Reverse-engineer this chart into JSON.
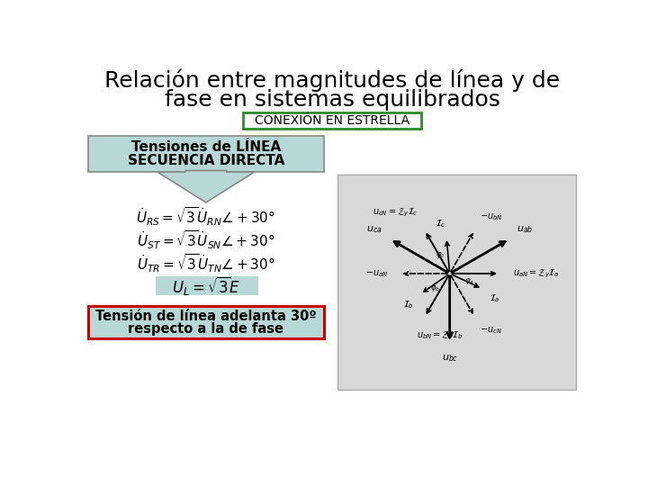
{
  "title_line1": "Relación entre magnitudes de línea y de",
  "title_line2": "fase en sistemas equilibrados",
  "subtitle": "CONEXIÓN EN ESTRELLA",
  "subtitle_box_color": "#ffffff",
  "subtitle_border_color": "#2d8a2d",
  "box1_text_line1": "Tensiones de LÍNEA",
  "box1_text_line2": "SECUENCIA DIRECTA",
  "box1_bg": "#b8d8d8",
  "box1_border": "#888888",
  "eq4_bg": "#b8d8d8",
  "bottom_text_line1": "Tensión de línea adelanta 30º",
  "bottom_text_line2": "respecto a la de fase",
  "bottom_box_bg": "#b8d8d8",
  "bottom_box_border": "#cc0000",
  "bg_color": "#ffffff",
  "title_color": "#000000",
  "phasor_diagram_bg": "#d8d8d8",
  "phasor_diagram_border": "#aaaaaa"
}
